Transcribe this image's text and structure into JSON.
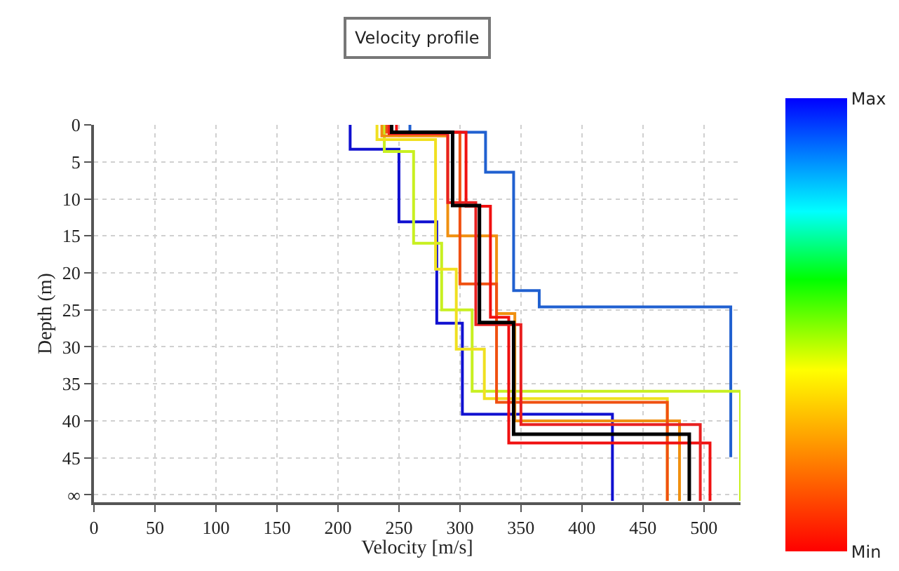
{
  "chart_data": {
    "type": "line",
    "title": "Velocity profile",
    "xlabel": "Velocity [m/s]",
    "ylabel": "Depth (m)",
    "xlim": [
      0,
      530
    ],
    "xticks": [
      0,
      50,
      100,
      150,
      200,
      250,
      300,
      350,
      400,
      450,
      500
    ],
    "ylim": [
      51,
      0
    ],
    "yticks": [
      0,
      5,
      10,
      15,
      20,
      25,
      30,
      35,
      40,
      45,
      {
        "value": 50,
        "label": "∞"
      }
    ],
    "grid": true,
    "line_style": "solid",
    "marker": "none",
    "clim": [
      0,
      1
    ],
    "cticks": [
      {
        "value": 0,
        "label": "Min"
      },
      {
        "value": 1,
        "label": "Max"
      }
    ],
    "series": [
      {
        "color": "#1010d0",
        "x": [
          210,
          210,
          250,
          250,
          281,
          281,
          302,
          302,
          425,
          425
        ],
        "values": [
          0,
          3.3,
          3.3,
          13.1,
          13.1,
          26.8,
          26.8,
          39.1,
          39.1,
          50.8
        ]
      },
      {
        "color": "#2060d0",
        "x": [
          259,
          259,
          321,
          321,
          344,
          344,
          365,
          365,
          522,
          522
        ],
        "values": [
          0,
          1,
          1,
          6.4,
          6.4,
          22.4,
          22.4,
          24.6,
          24.6,
          44.9
        ]
      },
      {
        "color": "#c8f020",
        "x": [
          238,
          238,
          262,
          262,
          285,
          285,
          310,
          310,
          530,
          530
        ],
        "values": [
          0,
          3.6,
          3.6,
          16,
          16,
          25,
          25,
          36,
          36,
          50.8
        ]
      },
      {
        "color": "#f0e020",
        "x": [
          232,
          232,
          280,
          280,
          297,
          297,
          320,
          320,
          470,
          470
        ],
        "values": [
          0,
          2,
          2,
          19.5,
          19.5,
          30.3,
          30.3,
          37,
          37,
          50.8
        ]
      },
      {
        "color": "#f09010",
        "x": [
          236,
          236,
          290,
          290,
          330,
          330,
          345,
          345,
          480,
          480
        ],
        "values": [
          0,
          1.5,
          1.5,
          15,
          15,
          25.5,
          25.5,
          40,
          40,
          50.8
        ]
      },
      {
        "color": "#f05010",
        "x": [
          240,
          240,
          300,
          300,
          330,
          330,
          470,
          470
        ],
        "values": [
          0,
          1,
          1,
          21.5,
          21.5,
          37.5,
          37.5,
          50.8
        ]
      },
      {
        "color": "#f01010",
        "x": [
          248,
          248,
          305,
          305,
          325,
          325,
          340,
          340,
          505,
          505
        ],
        "values": [
          0,
          1,
          1,
          11,
          11,
          26,
          26,
          43,
          43,
          50.8
        ]
      },
      {
        "color": "#e82020",
        "x": [
          242,
          242,
          290,
          290,
          313,
          313,
          350,
          350,
          497,
          497
        ],
        "values": [
          0,
          1.2,
          1.2,
          10.5,
          10.5,
          27,
          27,
          40.5,
          40.5,
          50.8
        ]
      },
      {
        "color": "#000000",
        "x": [
          244,
          244,
          294,
          294,
          316,
          316,
          344,
          344,
          488,
          488
        ],
        "values": [
          0,
          1,
          1,
          10.9,
          10.9,
          26.7,
          26.7,
          41.8,
          41.8,
          50.8
        ]
      }
    ]
  }
}
